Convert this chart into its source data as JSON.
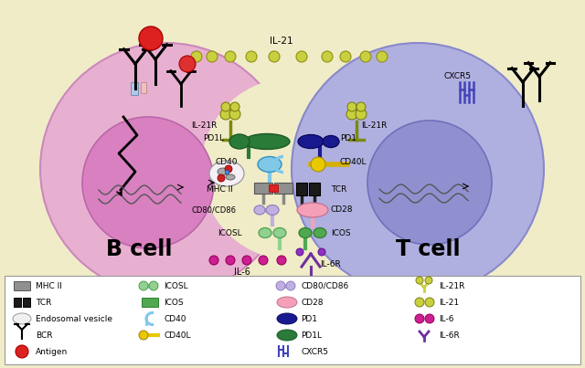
{
  "bg_color": "#f0ecc8",
  "legend_bg": "#ffffff",
  "b_cell_color": "#e8b0d0",
  "b_cell_inner_color": "#d880c0",
  "t_cell_color": "#b0b0e0",
  "t_cell_inner_color": "#9090d0",
  "bcell_label": "B cell",
  "tcell_label": "T cell",
  "il21_label": "IL-21",
  "il6_label": "IL-6",
  "il21r_label": "IL-21R",
  "pdi_label": "PD1L",
  "pd1_label": "PD1",
  "cd40_label": "CD40",
  "cd40l_label": "CD40L",
  "mhcii_label": "MHC II",
  "tcr_label": "TCR",
  "cd8086_label": "CD80/CD86",
  "cd28_label": "CD28",
  "icosl_label": "ICOSL",
  "icos_label": "ICOS",
  "il6r_label": "IL-6R",
  "cxcr5_label": "CXCR5",
  "endosomal_label": "Endosomal vesicle",
  "bcr_label": "BCR",
  "antigen_label": "Antigen"
}
